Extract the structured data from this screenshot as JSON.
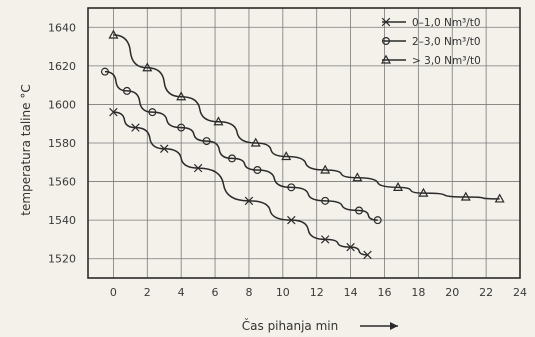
{
  "chart_data": {
    "type": "line",
    "title": "",
    "xlabel": "Čas pihanja min",
    "ylabel": "temperatura taline °C",
    "xlim": [
      -1.5,
      24
    ],
    "ylim": [
      1510,
      1650
    ],
    "x_ticks": [
      "0",
      "2",
      "4",
      "6",
      "8",
      "10",
      "12",
      "14",
      "16",
      "18",
      "20",
      "22",
      "24"
    ],
    "y_ticks": [
      "1520",
      "1540",
      "1560",
      "1580",
      "1600",
      "1620",
      "1640"
    ],
    "grid": true,
    "legend_position": "top-right",
    "series": [
      {
        "name": "0–1,0 Nm³/t0",
        "marker": "x",
        "x": [
          0,
          1.3,
          3,
          5,
          8,
          10.5,
          12.5,
          14,
          15
        ],
        "y": [
          1596,
          1588,
          1577,
          1567,
          1550,
          1540,
          1530,
          1526,
          1522
        ]
      },
      {
        "name": "2–3,0 Nm³/t0",
        "marker": "circle",
        "x": [
          -0.5,
          0.8,
          2.3,
          4,
          5.5,
          7,
          8.5,
          10.5,
          12.5,
          14.5,
          15.6
        ],
        "y": [
          1617,
          1607,
          1596,
          1588,
          1581,
          1572,
          1566,
          1557,
          1550,
          1545,
          1540
        ]
      },
      {
        "name": "> 3,0 Nm³/t0",
        "marker": "triangle",
        "x": [
          0,
          2,
          4,
          6.2,
          8.4,
          10.2,
          12.5,
          14.4,
          16.8,
          18.3,
          20.8,
          22.8
        ],
        "y": [
          1636,
          1619,
          1604,
          1591,
          1580,
          1573,
          1566,
          1562,
          1557,
          1554,
          1552,
          1551
        ]
      }
    ]
  }
}
